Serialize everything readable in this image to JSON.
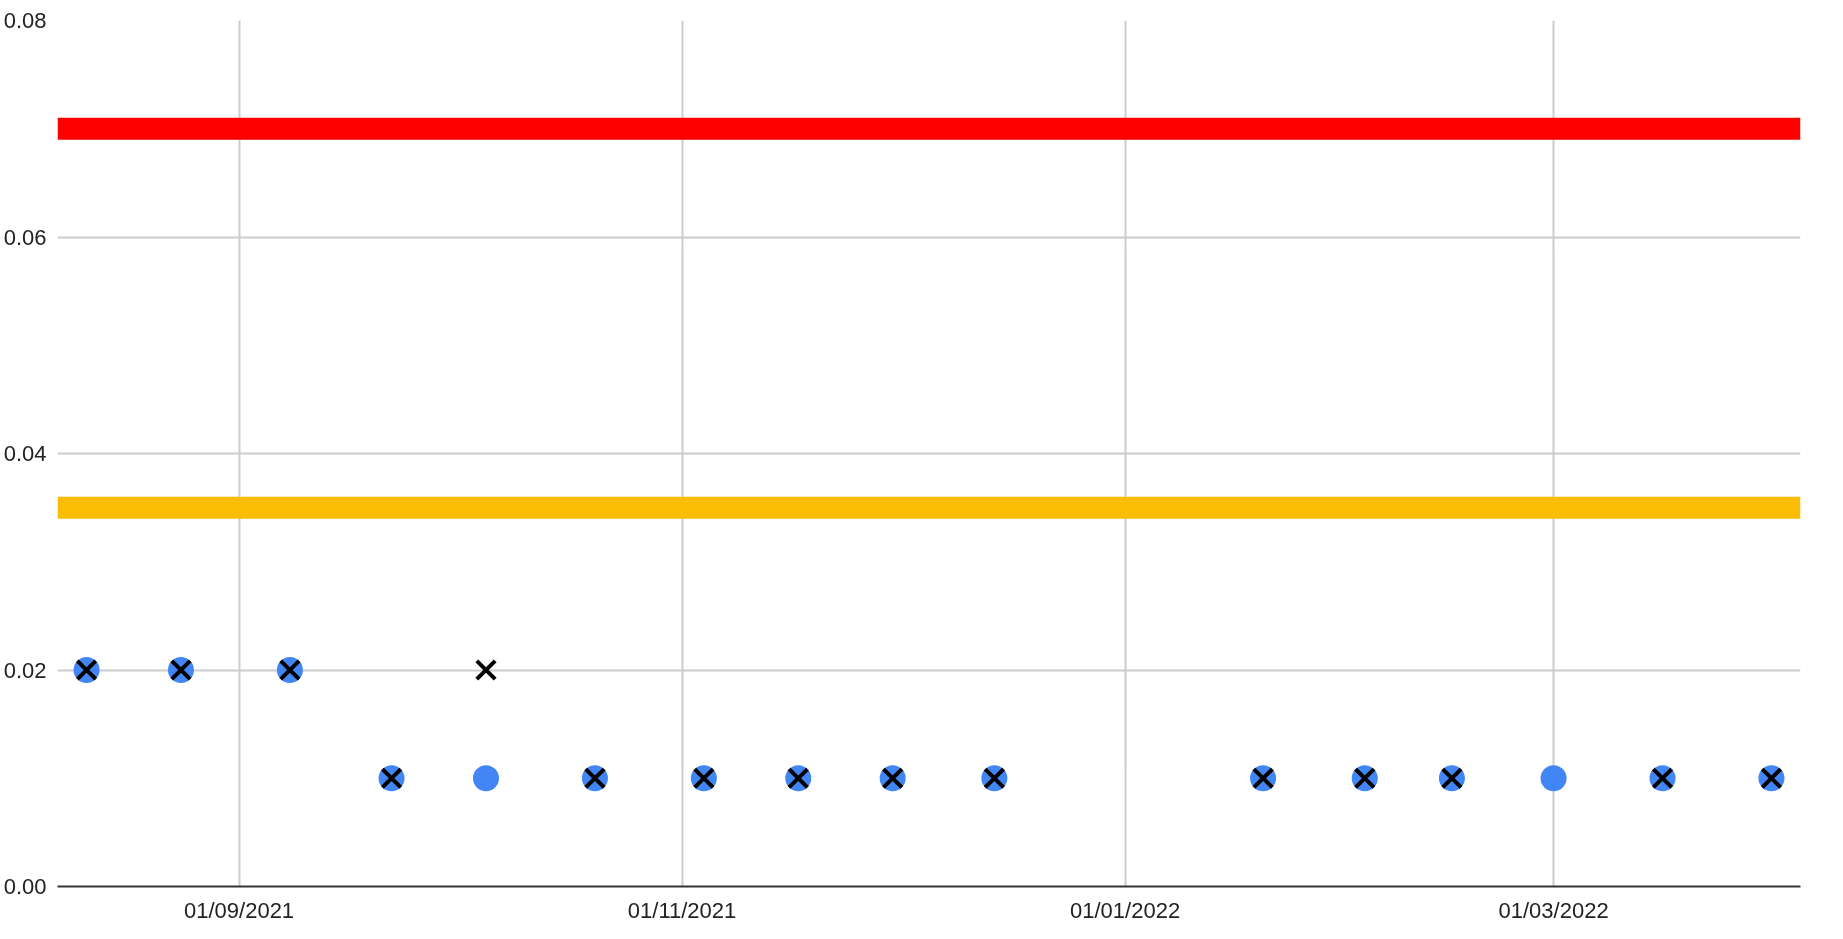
{
  "chart_data": {
    "type": "scatter",
    "x": [
      "2021-08-11",
      "2021-08-24",
      "2021-09-08",
      "2021-09-22",
      "2021-10-05",
      "2021-10-20",
      "2021-11-04",
      "2021-11-17",
      "2021-11-30",
      "2021-12-14",
      "2022-01-20",
      "2022-02-03",
      "2022-02-15",
      "2022-03-01",
      "2022-03-16",
      "2022-03-31"
    ],
    "series": [
      {
        "color": "#4285f4",
        "marker": "circle",
        "values": [
          0.02,
          0.02,
          0.02,
          0.01,
          0.01,
          0.01,
          0.01,
          0.01,
          0.01,
          0.01,
          0.01,
          0.01,
          0.01,
          0.01,
          0.01,
          0.01
        ]
      },
      {
        "color": "#000000",
        "marker": "cross",
        "values": [
          0.02,
          0.02,
          0.02,
          0.01,
          0.02,
          0.01,
          0.01,
          0.01,
          0.01,
          0.01,
          0.01,
          0.01,
          0.01,
          null,
          0.01,
          0.01
        ]
      }
    ],
    "ref_lines": [
      {
        "axis": "y",
        "value": 0.07,
        "color": "#ff0000"
      },
      {
        "axis": "y",
        "value": 0.035,
        "color": "#fbbc04"
      }
    ],
    "xlim": [
      "2021-08-07",
      "2022-04-04"
    ],
    "xticks": [
      {
        "value": "2021-09-01",
        "label": "01/09/2021"
      },
      {
        "value": "2021-11-01",
        "label": "01/11/2021"
      },
      {
        "value": "2022-01-01",
        "label": "01/01/2022"
      },
      {
        "value": "2022-03-01",
        "label": "01/03/2022"
      }
    ],
    "ylim": [
      0,
      0.08
    ],
    "yticks": [
      {
        "value": 0,
        "label": "0.00"
      },
      {
        "value": 0.02,
        "label": "0.02"
      },
      {
        "value": 0.04,
        "label": "0.04"
      },
      {
        "value": 0.06,
        "label": "0.06"
      },
      {
        "value": 0.08,
        "label": "0.08"
      }
    ],
    "grid": true
  }
}
